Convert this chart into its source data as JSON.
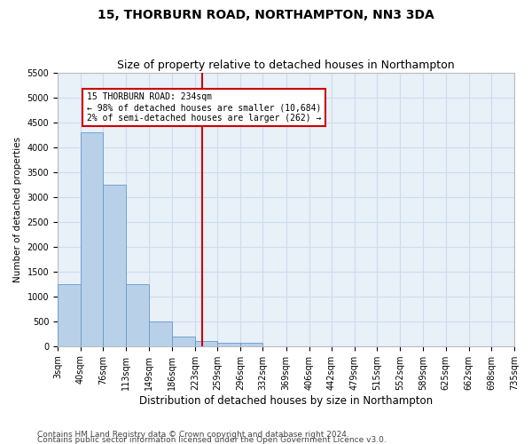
{
  "title": "15, THORBURN ROAD, NORTHAMPTON, NN3 3DA",
  "subtitle": "Size of property relative to detached houses in Northampton",
  "xlabel": "Distribution of detached houses by size in Northampton",
  "ylabel": "Number of detached properties",
  "footnote1": "Contains HM Land Registry data © Crown copyright and database right 2024.",
  "footnote2": "Contains public sector information licensed under the Open Government Licence v3.0.",
  "bin_edges": [
    3,
    40,
    76,
    113,
    149,
    186,
    223,
    259,
    296,
    332,
    369,
    406,
    442,
    479,
    515,
    552,
    589,
    625,
    662,
    698,
    735
  ],
  "bar_heights": [
    1250,
    4300,
    3250,
    1250,
    500,
    200,
    100,
    75,
    75,
    0,
    0,
    0,
    0,
    0,
    0,
    0,
    0,
    0,
    0,
    0
  ],
  "bar_color": "#b8d0e8",
  "bar_edge_color": "#6699cc",
  "grid_color": "#ccdcee",
  "background_color": "#e8f0f8",
  "vline_x": 234,
  "vline_color": "#cc0000",
  "annotation_text": "15 THORBURN ROAD: 234sqm\n← 98% of detached houses are smaller (10,684)\n2% of semi-detached houses are larger (262) →",
  "annotation_box_color": "#ffffff",
  "annotation_box_edge": "#cc0000",
  "ylim": [
    0,
    5500
  ],
  "yticks": [
    0,
    500,
    1000,
    1500,
    2000,
    2500,
    3000,
    3500,
    4000,
    4500,
    5000,
    5500
  ],
  "title_fontsize": 10,
  "subtitle_fontsize": 9,
  "xlabel_fontsize": 8.5,
  "ylabel_fontsize": 7.5,
  "tick_fontsize": 7,
  "footnote_fontsize": 6.5,
  "annot_fontsize": 7
}
